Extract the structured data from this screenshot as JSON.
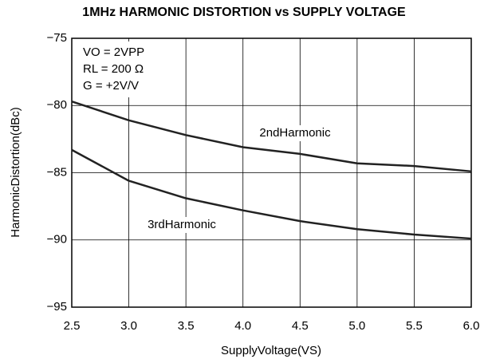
{
  "chart_data": {
    "type": "line",
    "title": "1MHz HARMONIC DISTORTION vs SUPPLY VOLTAGE",
    "xlabel": "SupplyVoltage(VS)",
    "ylabel": "HarmonicDistortion(dBc)",
    "conditions": [
      "VO = 2VPP",
      "RL = 200 Ω",
      "G = +2V/V"
    ],
    "x": [
      2.5,
      3.0,
      3.5,
      4.0,
      4.5,
      5.0,
      5.5,
      6.0
    ],
    "series": [
      {
        "name": "2ndHarmonic",
        "color": "#222222",
        "values": [
          -79.7,
          -81.1,
          -82.2,
          -83.1,
          -83.6,
          -84.3,
          -84.5,
          -84.9
        ]
      },
      {
        "name": "3rdHarmonic",
        "color": "#222222",
        "values": [
          -83.3,
          -85.6,
          -86.9,
          -87.8,
          -88.6,
          -89.2,
          -89.6,
          -89.9
        ]
      }
    ],
    "xlim": [
      2.5,
      6.0
    ],
    "xticks": [
      2.5,
      {
        "value": 3,
        "label": "3.0"
      },
      3.5,
      {
        "value": 4,
        "label": "4.0"
      },
      4.5,
      {
        "value": 5,
        "label": "5.0"
      },
      5.5,
      {
        "value": 6,
        "label": "6.0"
      }
    ],
    "ylim": [
      -95,
      -75
    ],
    "yticks": [
      {
        "value": -95,
        "label": "−95"
      },
      {
        "value": -90,
        "label": "−90"
      },
      {
        "value": -85,
        "label": "−85"
      },
      {
        "value": -80,
        "label": "−80"
      },
      {
        "value": -75,
        "label": "−75"
      }
    ],
    "grid": true
  }
}
